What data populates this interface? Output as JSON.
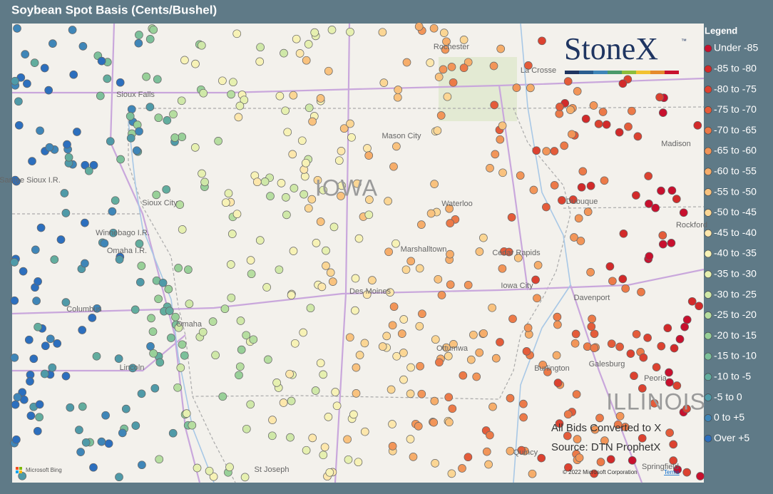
{
  "header": {
    "title": "Soybean Spot Basis (Cents/Bushel)"
  },
  "legend": {
    "title": "Legend",
    "items": [
      {
        "label": "Under -85",
        "color": "#c8102e"
      },
      {
        "label": "-85 to -80",
        "color": "#d22a2a"
      },
      {
        "label": "-80 to -75",
        "color": "#dc4230"
      },
      {
        "label": "-75 to -70",
        "color": "#e45c3a"
      },
      {
        "label": "-70 to -65",
        "color": "#ec7a48"
      },
      {
        "label": "-65 to -60",
        "color": "#f29558"
      },
      {
        "label": "-60 to -55",
        "color": "#f6ad6a"
      },
      {
        "label": "-55 to -50",
        "color": "#f9c27e"
      },
      {
        "label": "-50 to -45",
        "color": "#fbd694"
      },
      {
        "label": "-45 to -40",
        "color": "#fde7ac"
      },
      {
        "label": "-40 to -35",
        "color": "#f7f2b6"
      },
      {
        "label": "-35 to -30",
        "color": "#e6f0b0"
      },
      {
        "label": "-30 to -25",
        "color": "#cfe8a8"
      },
      {
        "label": "-25 to -20",
        "color": "#b6dea0"
      },
      {
        "label": "-20 to -15",
        "color": "#98d098"
      },
      {
        "label": "-15 to -10",
        "color": "#7cc09a"
      },
      {
        "label": "-10 to -5",
        "color": "#62ad9e"
      },
      {
        "label": "-5 to 0",
        "color": "#4f9aa8"
      },
      {
        "label": "0 to +5",
        "color": "#3f86b8"
      },
      {
        "label": "Over +5",
        "color": "#2c6fbe"
      }
    ]
  },
  "logo": {
    "name": "StoneX",
    "mark": "™"
  },
  "map": {
    "labels": [
      "Rochester",
      "La Crosse",
      "Sioux Falls",
      "Mason City",
      "Madison",
      "IOWA",
      "Santee Sioux I.R.",
      "Sioux City",
      "Waterloo",
      "Dubuque",
      "Rockford",
      "Winnebago I.R.",
      "Omaha I.R.",
      "Marshalltown",
      "Cedar Rapids",
      "Des Moines",
      "Iowa City",
      "Davenport",
      "Columbus",
      "Omaha",
      "Ottumwa",
      "Galesburg",
      "Lincoln",
      "Burlington",
      "Peoria",
      "ILLINOIS",
      "Quincy",
      "St Joseph",
      "Springfield"
    ]
  },
  "notes": {
    "conversion": "All Bids Converted to X",
    "source": "Source: DTN ProphetX",
    "provider": "Microsoft Bing",
    "copyright": "© 2022 Microsoft Corporation",
    "terms": "Terms"
  }
}
